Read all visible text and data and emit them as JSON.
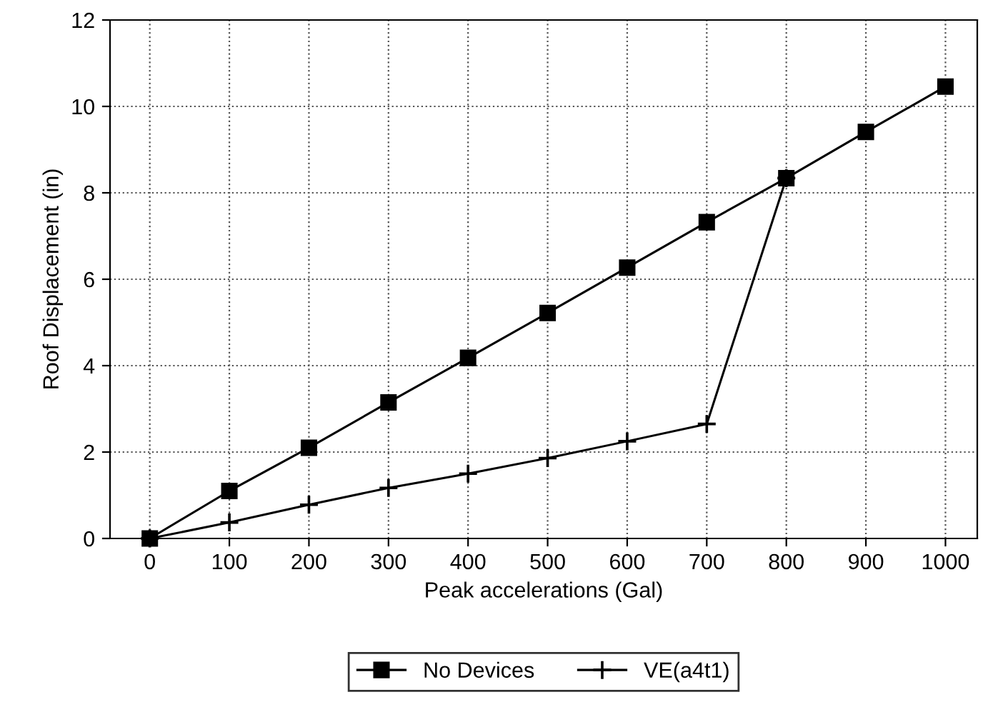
{
  "chart_data": {
    "type": "line",
    "xlabel": "Peak accelerations (Gal)",
    "ylabel": "Roof Displacement (in)",
    "x": [
      0,
      100,
      200,
      300,
      400,
      500,
      600,
      700,
      800,
      900,
      1000
    ],
    "series": [
      {
        "name": "No Devices",
        "color": "#000000",
        "marker": "square",
        "values": [
          0,
          1.1,
          2.1,
          3.15,
          4.18,
          5.22,
          6.27,
          7.32,
          8.34,
          9.41,
          10.46
        ]
      },
      {
        "name": "VE(a4t1)",
        "color": "#000000",
        "marker": "cross",
        "values": [
          0,
          0.37,
          0.78,
          1.17,
          1.5,
          1.86,
          2.25,
          2.65,
          8.34,
          null,
          null
        ]
      }
    ],
    "xlim": [
      -50,
      1040
    ],
    "xticks": [
      0,
      100,
      200,
      300,
      400,
      500,
      600,
      700,
      800,
      900,
      1000
    ],
    "ylim": [
      0,
      12
    ],
    "yticks": [
      0,
      2,
      4,
      6,
      8,
      10,
      12
    ],
    "grid": true,
    "legend": "bottom",
    "line_style": "solid"
  }
}
